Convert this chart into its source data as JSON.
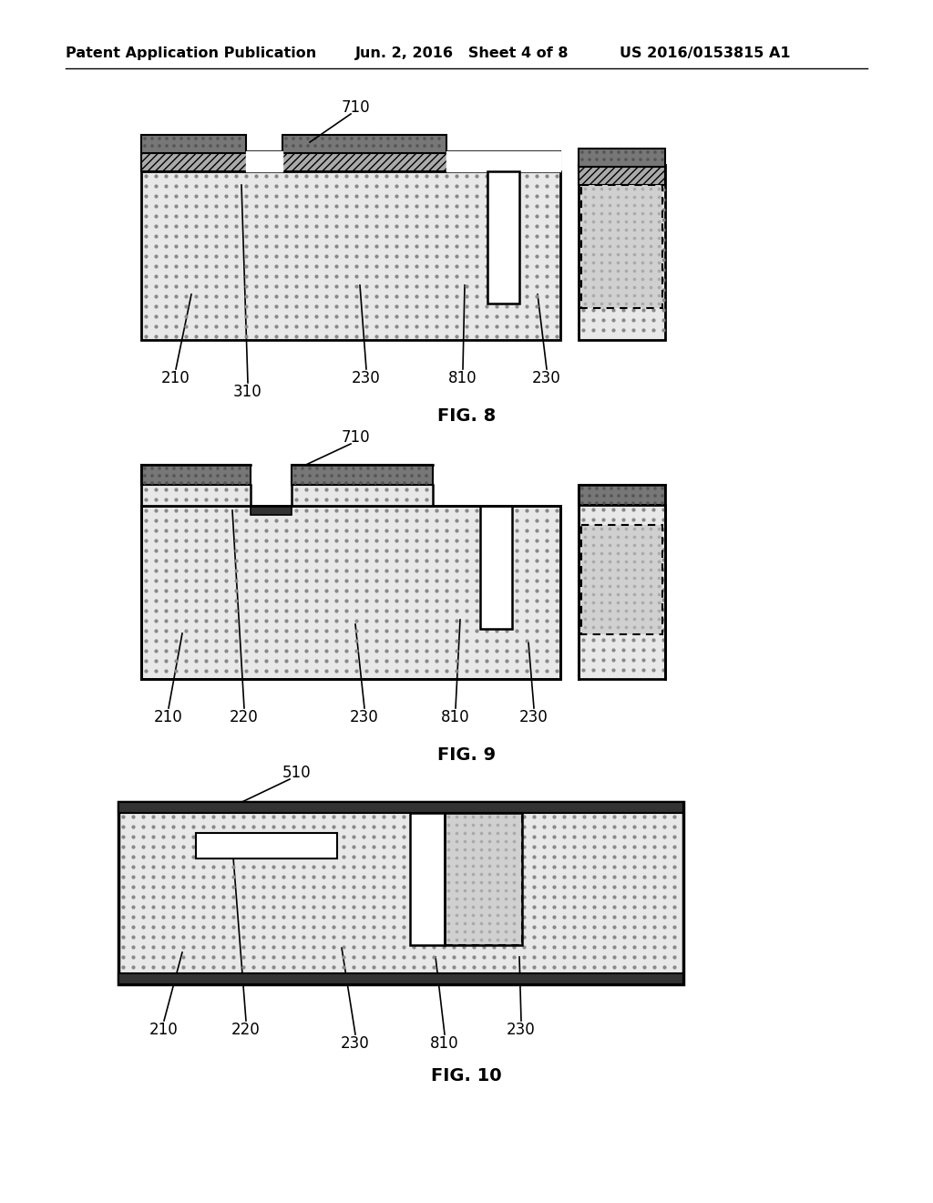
{
  "bg_color": "#ffffff",
  "header_left": "Patent Application Publication",
  "header_mid": "Jun. 2, 2016   Sheet 4 of 8",
  "header_right": "US 2016/0153815 A1",
  "fig8_label": "FIG. 8",
  "fig9_label": "FIG. 9",
  "fig10_label": "FIG. 10"
}
